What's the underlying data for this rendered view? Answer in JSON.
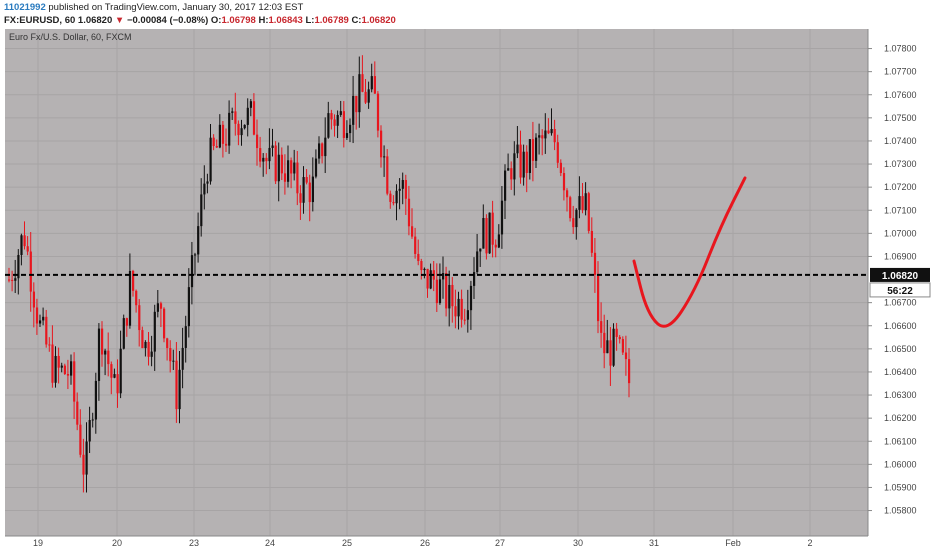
{
  "header": {
    "author": "11021992",
    "published": "published on TradingView.com, January 30, 2017 12:03 EST",
    "symbol": "FX:EURUSD, 60",
    "last": "1.06820",
    "arrow": "▼",
    "change": "−0.00084 (−0.08%)",
    "o_label": "O:",
    "o_val": "1.06798",
    "h_label": "H:",
    "h_val": "1.06843",
    "l_label": "L:",
    "l_val": "1.06789",
    "c_label": "C:",
    "c_val": "1.06820"
  },
  "colors": {
    "background": "#b5b2b3",
    "up": "#111111",
    "down": "#e8161e",
    "forecast": "#e8161e",
    "grid": "#a7a4a5"
  },
  "chart_data": {
    "type": "candlestick",
    "title": "Euro Fx/U.S. Dollar, 60, FXCM",
    "ylim": [
      1.058,
      1.0785
    ],
    "grid": true,
    "y_ticks": [
      "1.07800",
      "1.07700",
      "1.07600",
      "1.07500",
      "1.07400",
      "1.07300",
      "1.07200",
      "1.07100",
      "1.07000",
      "1.06900",
      "1.06820",
      "1.06700",
      "1.06600",
      "1.06500",
      "1.06400",
      "1.06300",
      "1.06200",
      "1.06100",
      "1.06000",
      "1.05900",
      "1.05800"
    ],
    "x_ticks": [
      "19",
      "20",
      "23",
      "24",
      "25",
      "26",
      "27",
      "30",
      "31",
      "Feb",
      "2"
    ],
    "current_price": 1.0682,
    "current_price_label": "1.06820",
    "countdown_label": "56:22",
    "hline": 1.0682,
    "series": [
      {
        "segments": [
          [
            1.068,
            1.07,
            1.067,
            1.066
          ],
          [
            1.066,
            1.064,
            1.062,
            1.065
          ],
          [
            1.064,
            1.0595,
            1.059,
            1.066
          ],
          [
            1.066,
            1.063,
            1.062,
            1.068
          ],
          [
            1.068,
            1.065,
            1.064,
            1.067
          ],
          [
            1.067,
            1.063,
            1.0625,
            1.068
          ],
          [
            1.068,
            1.073,
            1.066,
            1.075
          ],
          [
            1.074,
            1.075,
            1.071,
            1.077
          ],
          [
            1.075,
            1.073,
            1.072,
            1.077
          ],
          [
            1.073,
            1.072,
            1.071,
            1.074
          ],
          [
            1.072,
            1.075,
            1.071,
            1.076
          ],
          [
            1.075,
            1.076,
            1.073,
            1.077
          ],
          [
            1.076,
            1.072,
            1.067,
            1.077
          ],
          [
            1.072,
            1.068,
            1.066,
            1.071
          ],
          [
            1.068,
            1.067,
            1.066,
            1.07
          ],
          [
            1.067,
            1.07,
            1.066,
            1.071
          ],
          [
            1.07,
            1.073,
            1.069,
            1.075
          ],
          [
            1.073,
            1.074,
            1.0725,
            1.0745
          ],
          [
            1.074,
            1.071,
            1.07,
            1.0745
          ],
          [
            1.071,
            1.065,
            1.0625,
            1.072
          ],
          [
            1.065,
            1.0632,
            1.062,
            1.0695
          ]
        ]
      }
    ],
    "forecast": {
      "points": [
        [
          0.0,
          1.0688
        ],
        [
          0.12,
          1.0665
        ],
        [
          0.3,
          1.0657
        ],
        [
          0.55,
          1.0675
        ],
        [
          0.78,
          1.0703
        ],
        [
          1.0,
          1.0724
        ]
      ]
    }
  }
}
